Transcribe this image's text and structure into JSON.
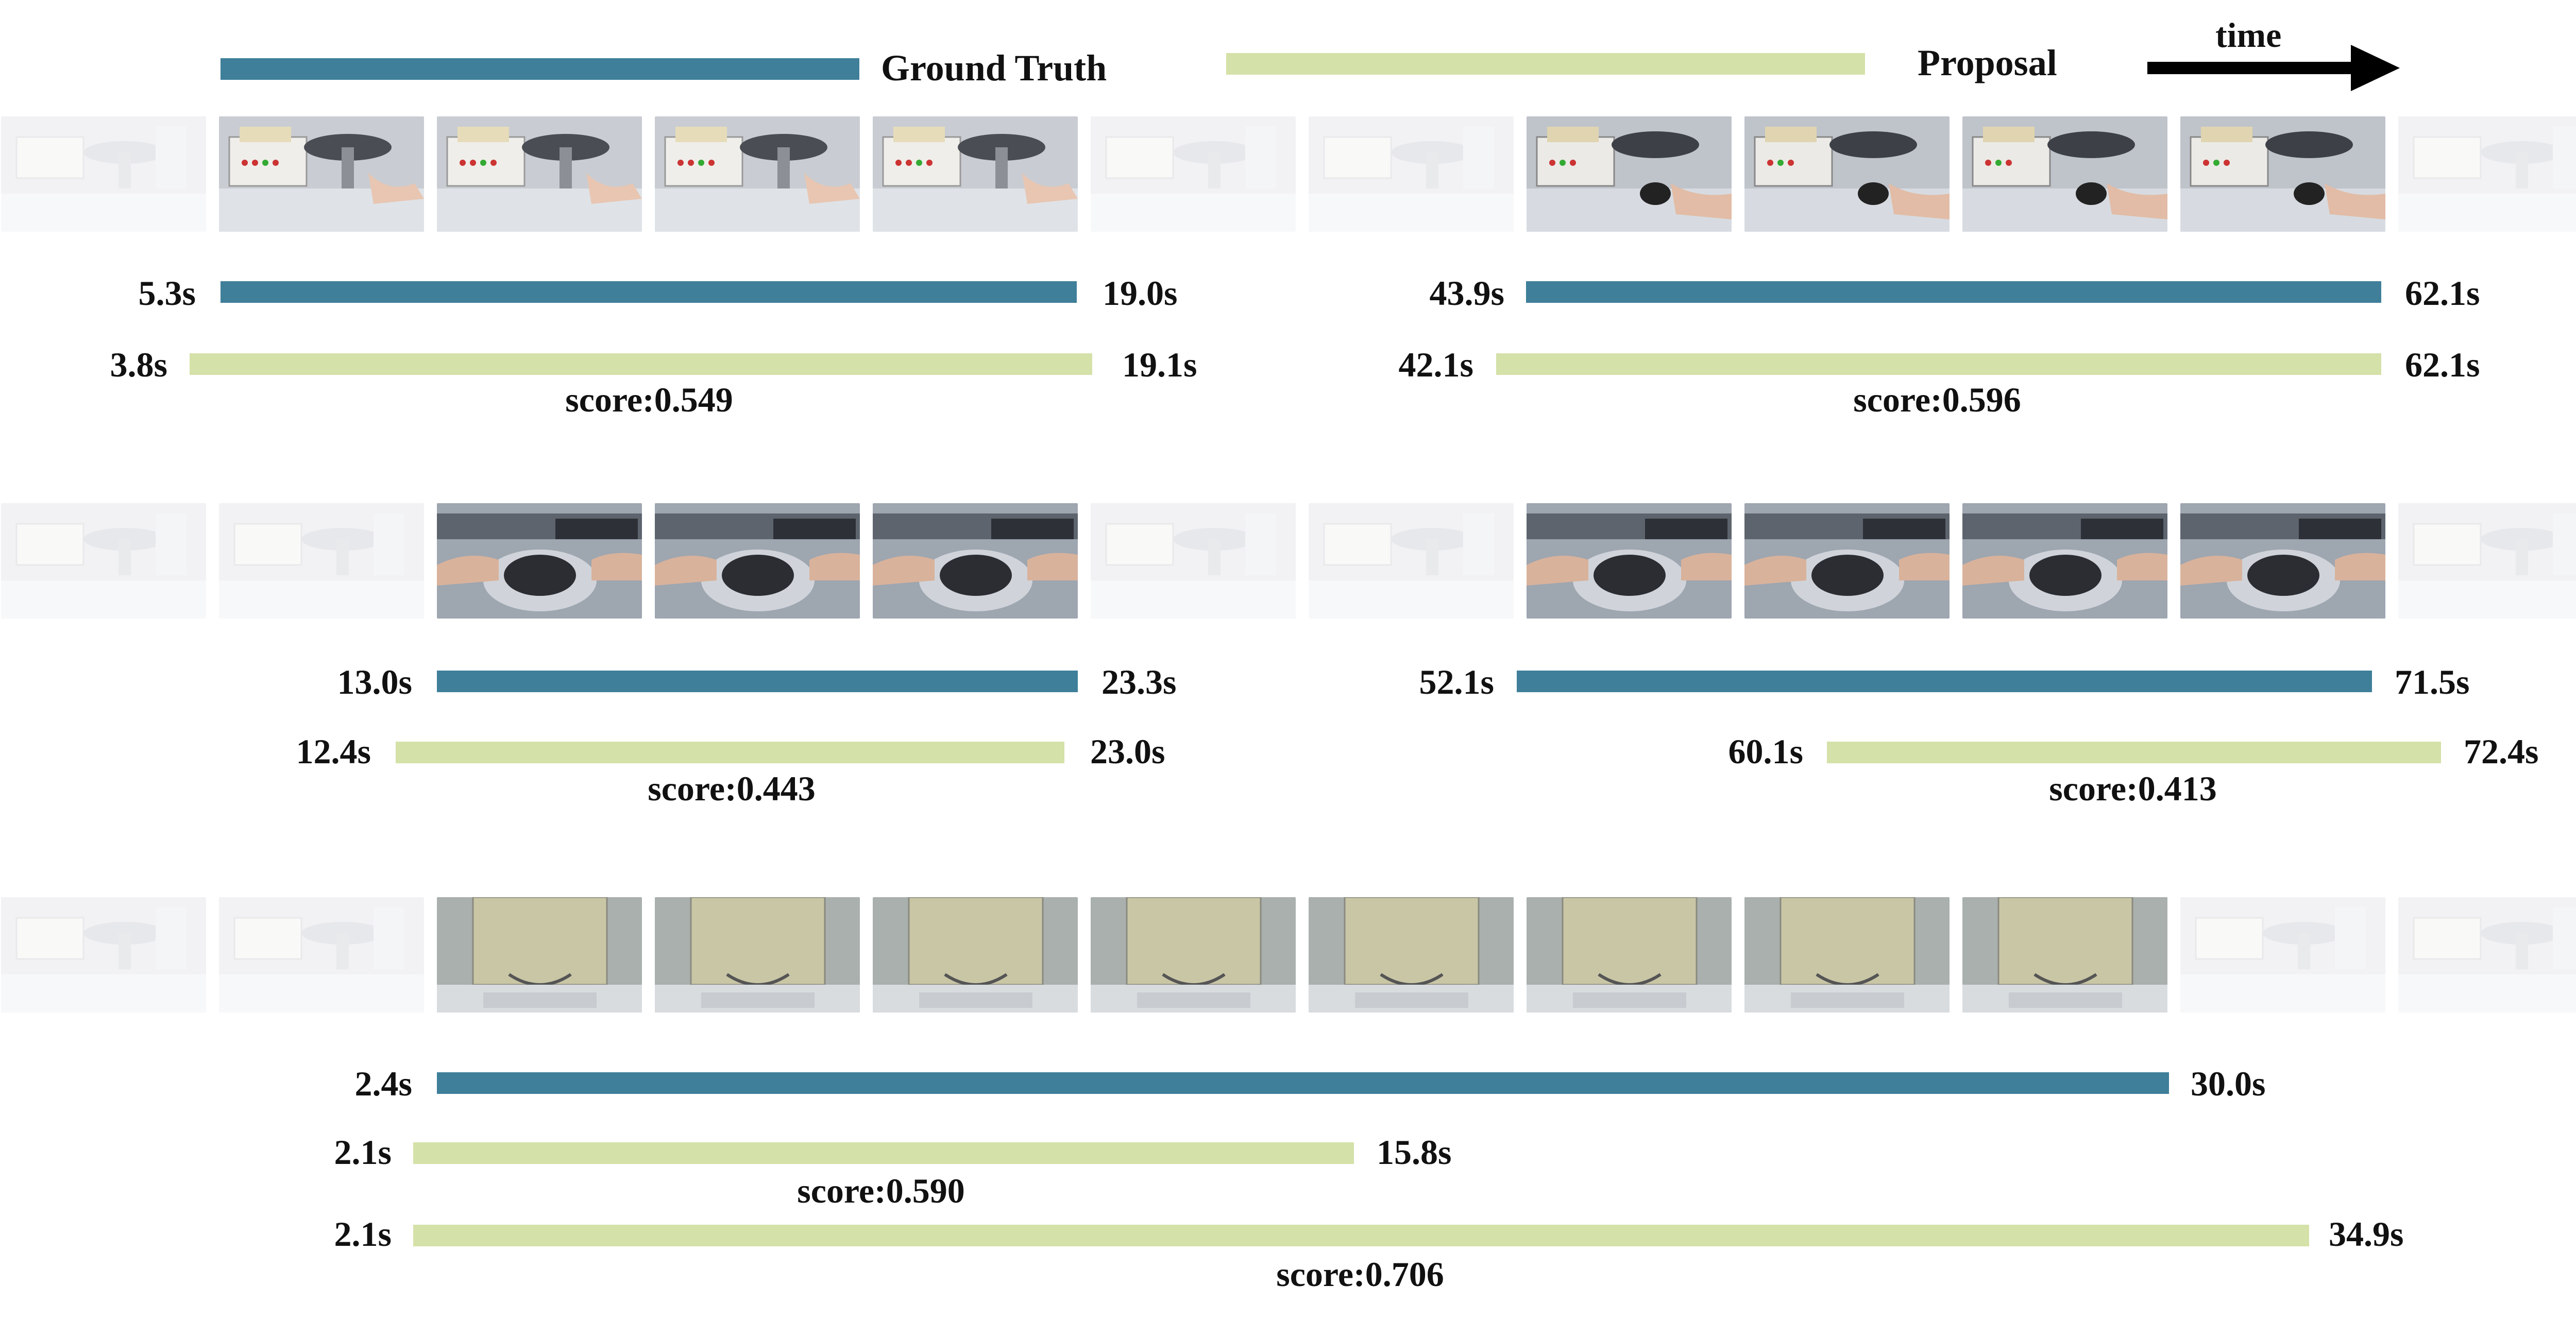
{
  "legend": {
    "ground_truth": "Ground Truth",
    "proposal": "Proposal",
    "time": "time"
  },
  "colors": {
    "ground_truth_bar": "#3f7f9a",
    "proposal_bar": "#d4e1a8"
  },
  "rows": [
    {
      "frames": [
        "faded",
        "lab1",
        "lab1",
        "lab1",
        "lab1",
        "faded",
        "faded",
        "lab1-dark",
        "lab1-dark",
        "lab1-dark",
        "lab1-dark",
        "faded"
      ],
      "segments": [
        {
          "gt_start": "5.3s",
          "gt_end": "19.0s",
          "prop_start": "3.8s",
          "prop_end": "19.1s",
          "score": "score:0.549"
        },
        {
          "gt_start": "43.9s",
          "gt_end": "62.1s",
          "prop_start": "42.1s",
          "prop_end": "62.1s",
          "score": "score:0.596"
        }
      ]
    },
    {
      "frames": [
        "faded",
        "faded",
        "lab2",
        "lab2",
        "lab2",
        "faded",
        "faded",
        "lab2",
        "lab2",
        "lab2",
        "lab2",
        "faded"
      ],
      "segments": [
        {
          "gt_start": "13.0s",
          "gt_end": "23.3s",
          "prop_start": "12.4s",
          "prop_end": "23.0s",
          "score": "score:0.443"
        },
        {
          "gt_start": "52.1s",
          "gt_end": "71.5s",
          "prop_start": "60.1s",
          "prop_end": "72.4s",
          "score": "score:0.413"
        }
      ]
    },
    {
      "frames": [
        "faded",
        "faded",
        "balance",
        "balance",
        "balance",
        "balance",
        "balance",
        "balance",
        "balance",
        "balance",
        "faded",
        "faded"
      ],
      "segments": [
        {
          "gt_start": "2.4s",
          "gt_end": "30.0s",
          "prop1_start": "2.1s",
          "prop1_end": "15.8s",
          "score1": "score:0.590",
          "prop2_start": "2.1s",
          "prop2_end": "34.9s",
          "score2": "score:0.706"
        }
      ]
    }
  ]
}
